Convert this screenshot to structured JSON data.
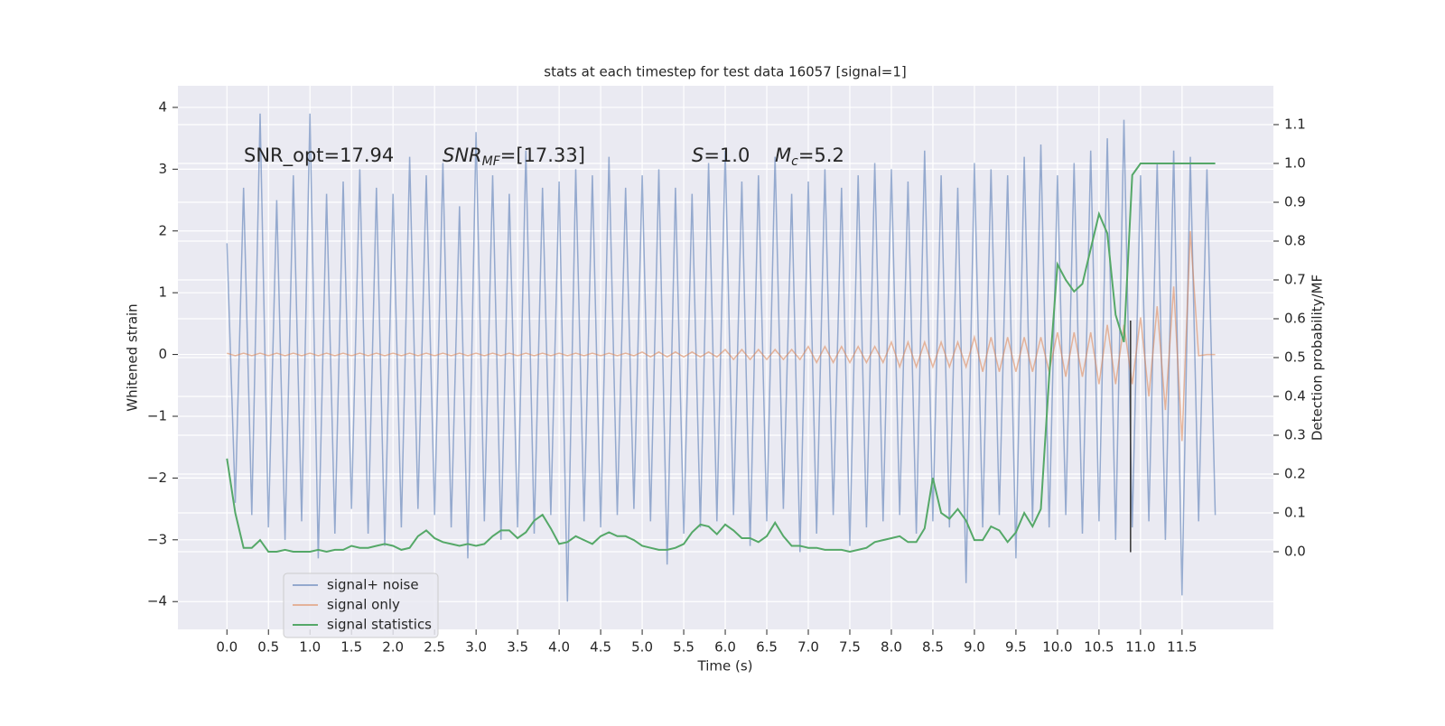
{
  "chart_data": {
    "type": "line",
    "title": "stats at each timestep for test data 16057 [signal=1]",
    "x_label": "Time (s)",
    "y_label": "Whitened strain",
    "y2_label": "Detection probability/MF",
    "annotations": [
      {
        "text": "SNR_opt=17.94"
      },
      {
        "math": "SNR",
        "sub": "MF",
        "text": "=[17.33]"
      },
      {
        "math": "S",
        "text": "=1.0"
      },
      {
        "math": "M",
        "sub": "c",
        "text": "=5.2"
      }
    ],
    "xlim": [
      -0.59,
      12.6
    ],
    "ylim": [
      -4.45,
      4.35
    ],
    "y2lim": [
      -0.2,
      1.2
    ],
    "xticks": [
      {
        "value": 0,
        "label": "0.0"
      },
      0.5,
      {
        "value": 1,
        "label": "1.0"
      },
      1.5,
      {
        "value": 2,
        "label": "2.0"
      },
      2.5,
      {
        "value": 3,
        "label": "3.0"
      },
      3.5,
      {
        "value": 4,
        "label": "4.0"
      },
      4.5,
      {
        "value": 5,
        "label": "5.0"
      },
      5.5,
      {
        "value": 6,
        "label": "6.0"
      },
      6.5,
      {
        "value": 7,
        "label": "7.0"
      },
      7.5,
      {
        "value": 8,
        "label": "8.0"
      },
      8.5,
      {
        "value": 9,
        "label": "9.0"
      },
      9.5,
      {
        "value": 10,
        "label": "10.0"
      },
      10.5,
      {
        "value": 11,
        "label": "11.0"
      },
      11.5
    ],
    "yticks": [
      {
        "value": -4,
        "label": "−4"
      },
      {
        "value": -3,
        "label": "−3"
      },
      {
        "value": -2,
        "label": "−2"
      },
      {
        "value": -1,
        "label": "−1"
      },
      0,
      1,
      2,
      3,
      4
    ],
    "y2ticks": [
      {
        "value": 0,
        "label": "0.0"
      },
      0.1,
      0.2,
      0.3,
      0.4,
      0.5,
      0.6,
      0.7,
      0.8,
      0.9,
      {
        "value": 1,
        "label": "1.0"
      },
      1.1
    ],
    "grid": true,
    "legend": "lower left",
    "x": [
      0,
      0.1,
      0.2,
      0.3,
      0.4,
      0.5,
      0.6,
      0.7,
      0.8,
      0.9,
      1,
      1.1,
      1.2,
      1.3,
      1.4,
      1.5,
      1.6,
      1.7,
      1.8,
      1.9,
      2,
      2.1,
      2.2,
      2.3,
      2.4,
      2.5,
      2.6,
      2.7,
      2.8,
      2.9,
      3,
      3.1,
      3.2,
      3.3,
      3.4,
      3.5,
      3.6,
      3.7,
      3.8,
      3.9,
      4,
      4.1,
      4.2,
      4.3,
      4.4,
      4.5,
      4.6,
      4.7,
      4.8,
      4.9,
      5,
      5.1,
      5.2,
      5.3,
      5.4,
      5.5,
      5.6,
      5.7,
      5.8,
      5.9,
      6,
      6.1,
      6.2,
      6.3,
      6.4,
      6.5,
      6.6,
      6.7,
      6.8,
      6.9,
      7,
      7.1,
      7.2,
      7.3,
      7.4,
      7.5,
      7.6,
      7.7,
      7.8,
      7.9,
      8,
      8.1,
      8.2,
      8.3,
      8.4,
      8.5,
      8.6,
      8.7,
      8.8,
      8.9,
      9,
      9.1,
      9.2,
      9.3,
      9.4,
      9.5,
      9.6,
      9.7,
      9.8,
      9.9,
      10,
      10.1,
      10.2,
      10.3,
      10.4,
      10.5,
      10.6,
      10.7,
      10.8,
      10.9,
      11,
      11.1,
      11.2,
      11.3,
      11.4,
      11.5,
      11.6,
      11.7,
      11.8,
      11.9
    ],
    "series": [
      {
        "name": "signal+ noise",
        "color": "#4c72b0",
        "values": [
          1.8,
          -2.4,
          2.7,
          -2.6,
          3.9,
          -2.8,
          2.5,
          -3.0,
          2.9,
          -2.7,
          3.9,
          -3.3,
          2.6,
          -2.9,
          2.8,
          -2.5,
          3.0,
          -2.9,
          2.7,
          -3.1,
          2.6,
          -2.8,
          3.2,
          -2.5,
          2.9,
          -2.6,
          3.1,
          -2.8,
          2.4,
          -3.3,
          3.6,
          -2.7,
          2.9,
          -3.0,
          2.6,
          -2.8,
          3.3,
          -2.9,
          2.7,
          -2.6,
          2.8,
          -4.0,
          3.0,
          -2.7,
          2.9,
          -2.8,
          3.2,
          -2.6,
          2.7,
          -2.5,
          2.9,
          -2.7,
          3.0,
          -3.4,
          2.7,
          -2.9,
          2.6,
          -2.8,
          3.1,
          -2.7,
          3.3,
          -2.6,
          2.8,
          -3.1,
          2.9,
          -2.7,
          3.2,
          -2.5,
          2.6,
          -3.2,
          2.8,
          -2.9,
          3.0,
          -2.6,
          2.7,
          -3.1,
          2.9,
          -2.8,
          3.1,
          -2.7,
          3.0,
          -2.6,
          2.8,
          -2.9,
          3.3,
          -2.7,
          2.9,
          -2.8,
          2.7,
          -3.7,
          3.1,
          -2.8,
          3.0,
          -2.6,
          2.9,
          -3.3,
          3.2,
          -2.7,
          3.4,
          -2.8,
          2.9,
          -2.6,
          3.1,
          -2.9,
          3.3,
          -2.7,
          3.5,
          -3.0,
          3.8,
          -2.8,
          2.9,
          -2.7,
          3.1,
          -3.0,
          3.3,
          -3.9,
          3.2,
          -2.7,
          3.0,
          -2.6
        ]
      },
      {
        "name": "signal only",
        "color": "#dd8452",
        "values": [
          0.02,
          -0.02,
          0.02,
          -0.02,
          0.02,
          -0.02,
          0.02,
          -0.02,
          0.02,
          -0.02,
          0.02,
          -0.02,
          0.02,
          -0.02,
          0.02,
          -0.02,
          0.02,
          -0.02,
          0.02,
          -0.02,
          0.02,
          -0.02,
          0.02,
          -0.02,
          0.02,
          -0.02,
          0.02,
          -0.02,
          0.02,
          -0.02,
          0.02,
          -0.02,
          0.02,
          -0.02,
          0.02,
          -0.02,
          0.02,
          -0.02,
          0.02,
          -0.02,
          0.02,
          -0.02,
          0.02,
          -0.02,
          0.02,
          -0.02,
          0.02,
          -0.02,
          0.02,
          -0.02,
          0.04,
          -0.04,
          0.04,
          -0.04,
          0.04,
          -0.04,
          0.04,
          -0.04,
          0.04,
          -0.04,
          0.08,
          -0.08,
          0.08,
          -0.08,
          0.08,
          -0.08,
          0.08,
          -0.08,
          0.08,
          -0.08,
          0.13,
          -0.13,
          0.13,
          -0.13,
          0.13,
          -0.13,
          0.13,
          -0.13,
          0.13,
          -0.13,
          0.2,
          -0.2,
          0.2,
          -0.2,
          0.2,
          -0.2,
          0.2,
          -0.2,
          0.2,
          -0.2,
          0.28,
          -0.28,
          0.28,
          -0.28,
          0.28,
          -0.28,
          0.28,
          -0.28,
          0.28,
          -0.28,
          0.36,
          -0.36,
          0.36,
          -0.36,
          0.36,
          -0.48,
          0.48,
          -0.48,
          0.48,
          -0.48,
          0.6,
          -0.68,
          0.78,
          -0.9,
          1.1,
          -1.4,
          2.0,
          -0.02,
          0,
          0
        ]
      },
      {
        "name": "signal statistics",
        "color": "#55a868",
        "axis": "y2",
        "values": [
          0.24,
          0.1,
          0.01,
          0.01,
          0.03,
          0.0,
          0.0,
          0.005,
          0.0,
          0.0,
          0.0,
          0.005,
          0.0,
          0.005,
          0.005,
          0.015,
          0.01,
          0.01,
          0.015,
          0.02,
          0.015,
          0.005,
          0.01,
          0.04,
          0.055,
          0.035,
          0.025,
          0.02,
          0.015,
          0.02,
          0.015,
          0.02,
          0.04,
          0.055,
          0.055,
          0.035,
          0.05,
          0.08,
          0.095,
          0.06,
          0.02,
          0.025,
          0.04,
          0.03,
          0.02,
          0.04,
          0.05,
          0.04,
          0.04,
          0.03,
          0.015,
          0.01,
          0.005,
          0.005,
          0.01,
          0.02,
          0.05,
          0.07,
          0.065,
          0.045,
          0.07,
          0.055,
          0.035,
          0.035,
          0.025,
          0.04,
          0.075,
          0.04,
          0.015,
          0.015,
          0.01,
          0.01,
          0.005,
          0.005,
          0.005,
          0.0,
          0.005,
          0.01,
          0.025,
          0.03,
          0.035,
          0.04,
          0.025,
          0.025,
          0.06,
          0.19,
          0.1,
          0.085,
          0.11,
          0.08,
          0.03,
          0.03,
          0.065,
          0.055,
          0.025,
          0.05,
          0.1,
          0.065,
          0.11,
          0.45,
          0.74,
          0.7,
          0.67,
          0.69,
          0.78,
          0.87,
          0.82,
          0.61,
          0.54,
          0.97,
          1.0,
          1.0,
          1.0,
          1.0,
          1.0,
          1.0,
          1.0,
          1.0,
          1.0,
          1.0
        ]
      }
    ],
    "marker": {
      "color": "#333333",
      "x": 10.88,
      "y": [
        -3.2,
        0.55
      ]
    }
  }
}
